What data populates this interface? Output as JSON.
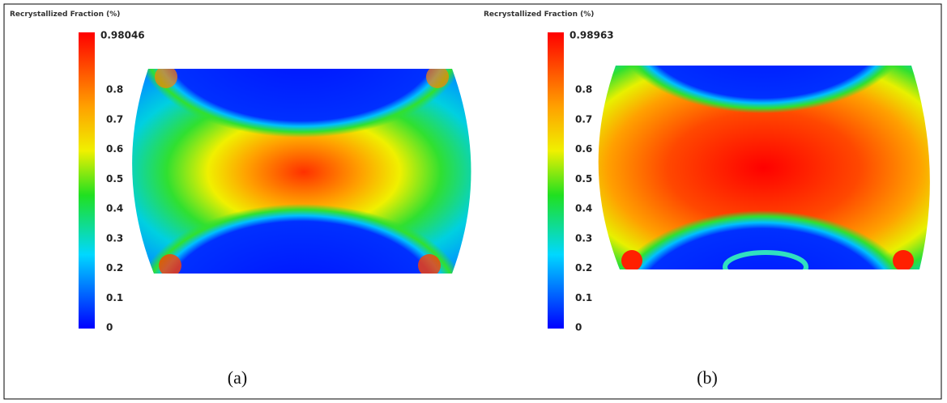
{
  "panels": [
    {
      "colorbar_title": "Recrystallized Fraction (%)",
      "max_label": "0.98046",
      "tick_labels": [
        "0.8",
        "0.7",
        "0.6",
        "0.5",
        "0.4",
        "0.3",
        "0.2",
        "0.1",
        "0"
      ],
      "caption": "(a)"
    },
    {
      "colorbar_title": "Recrystallized Fraction (%)",
      "max_label": "0.98963",
      "tick_labels": [
        "0.8",
        "0.7",
        "0.6",
        "0.5",
        "0.4",
        "0.3",
        "0.2",
        "0.1",
        "0"
      ],
      "caption": "(b)"
    }
  ]
}
